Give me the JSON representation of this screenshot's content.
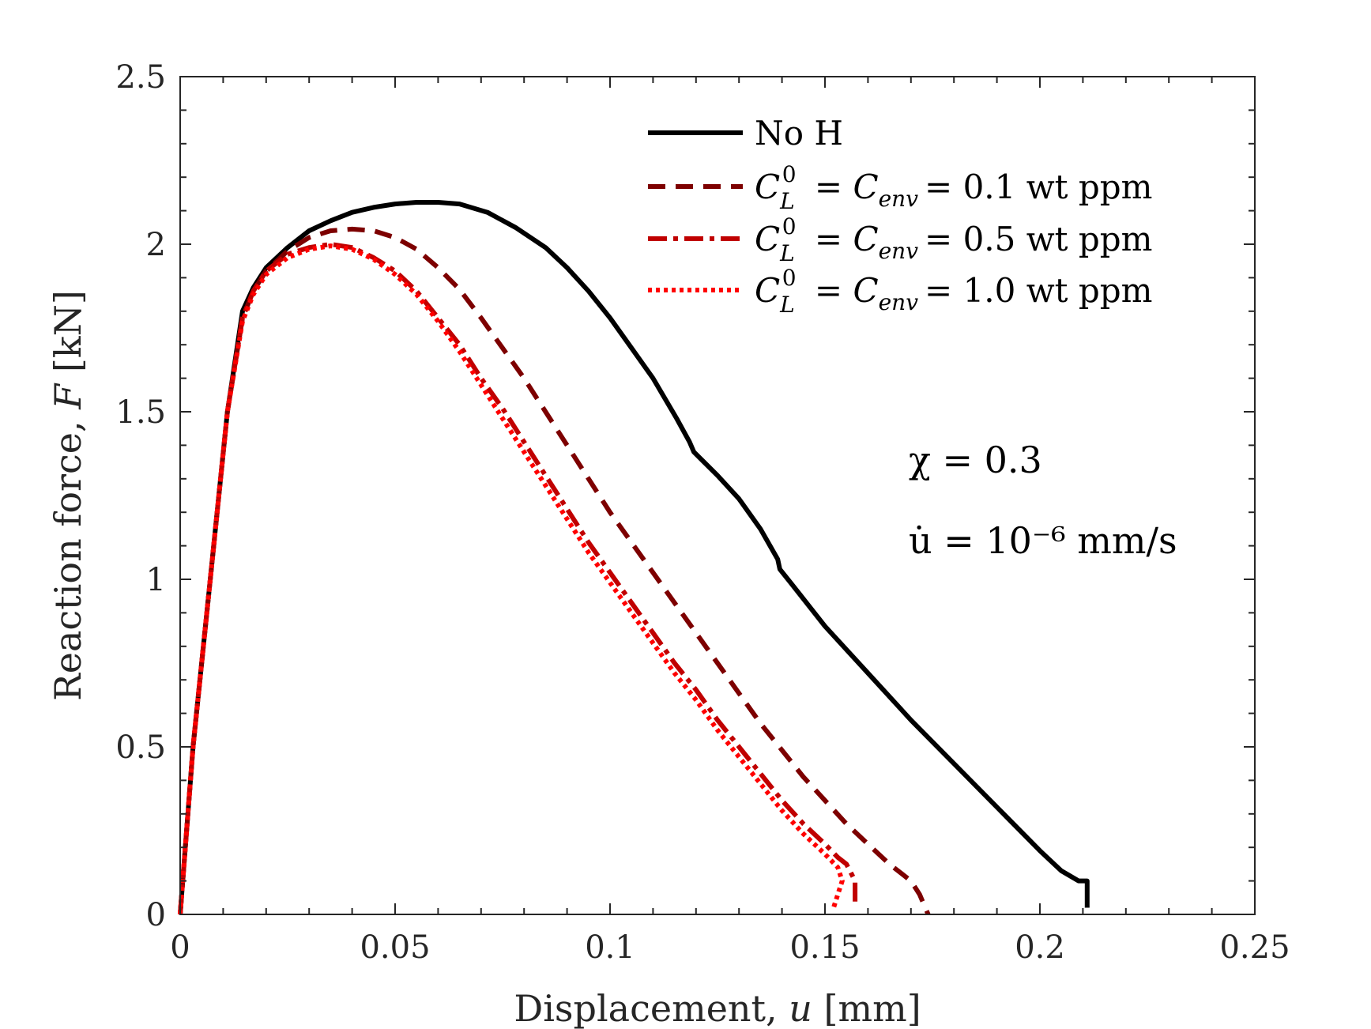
{
  "chart_data": {
    "type": "line",
    "title": "",
    "xlabel": "Displacement, u [mm]",
    "xlabel_text": "Displacement,",
    "xlabel_var": "u",
    "xlabel_unit": "[mm]",
    "ylabel": "Reaction force, F [kN]",
    "ylabel_text": "Reaction force,",
    "ylabel_var": "F",
    "ylabel_unit": "[kN]",
    "xlim": [
      0,
      0.25
    ],
    "ylim": [
      0,
      2.5
    ],
    "xticks": [
      0,
      0.05,
      0.1,
      0.15,
      0.2,
      0.25
    ],
    "xtick_labels": [
      "0",
      "0.05",
      "0.1",
      "0.15",
      "0.2",
      "0.25"
    ],
    "yticks": [
      0,
      0.5,
      1,
      1.5,
      2,
      2.5
    ],
    "ytick_labels": [
      "0",
      "0.5",
      "1",
      "1.5",
      "2",
      "2.5"
    ],
    "legend_position": "top-right",
    "annotations": {
      "chi": "χ = 0.3",
      "rate": "u̇ = 10⁻⁶ mm/s"
    },
    "series": [
      {
        "name": "No H",
        "legend_label": "No H",
        "color": "#000000",
        "style": "solid",
        "x": [
          0,
          0.003,
          0.007,
          0.011,
          0.0145,
          0.017,
          0.02,
          0.025,
          0.03,
          0.035,
          0.04,
          0.045,
          0.05,
          0.055,
          0.06,
          0.065,
          0.0715,
          0.078,
          0.085,
          0.09,
          0.095,
          0.1,
          0.105,
          0.11,
          0.1155,
          0.1185,
          0.1195,
          0.125,
          0.13,
          0.135,
          0.139,
          0.1395,
          0.142,
          0.15,
          0.16,
          0.17,
          0.18,
          0.19,
          0.2,
          0.205,
          0.209,
          0.211,
          0.211
        ],
        "y": [
          0,
          0.5,
          1.0,
          1.5,
          1.8,
          1.87,
          1.93,
          1.99,
          2.04,
          2.07,
          2.095,
          2.11,
          2.12,
          2.125,
          2.125,
          2.12,
          2.095,
          2.05,
          1.99,
          1.93,
          1.86,
          1.78,
          1.69,
          1.6,
          1.48,
          1.41,
          1.38,
          1.31,
          1.24,
          1.15,
          1.06,
          1.03,
          0.99,
          0.86,
          0.72,
          0.58,
          0.45,
          0.32,
          0.19,
          0.13,
          0.1,
          0.1,
          0.02
        ]
      },
      {
        "name": "C_L^0 = C_env = 0.1 wt ppm",
        "legend_label": "= 0.1 wt ppm",
        "color": "#7d0000",
        "style": "dashed",
        "x": [
          0,
          0.003,
          0.007,
          0.011,
          0.0145,
          0.017,
          0.02,
          0.025,
          0.03,
          0.035,
          0.04,
          0.045,
          0.05,
          0.055,
          0.06,
          0.065,
          0.07,
          0.075,
          0.08,
          0.085,
          0.09,
          0.095,
          0.1,
          0.105,
          0.11,
          0.115,
          0.12,
          0.125,
          0.13,
          0.135,
          0.14,
          0.145,
          0.15,
          0.155,
          0.16,
          0.165,
          0.17,
          0.172,
          0.174
        ],
        "y": [
          0,
          0.5,
          1.0,
          1.5,
          1.78,
          1.86,
          1.92,
          1.98,
          2.02,
          2.04,
          2.045,
          2.04,
          2.02,
          1.985,
          1.93,
          1.865,
          1.78,
          1.69,
          1.6,
          1.5,
          1.4,
          1.3,
          1.2,
          1.11,
          1.02,
          0.93,
          0.84,
          0.75,
          0.66,
          0.57,
          0.49,
          0.41,
          0.34,
          0.27,
          0.21,
          0.15,
          0.1,
          0.06,
          0.0
        ]
      },
      {
        "name": "C_L^0 = C_env = 0.5 wt ppm",
        "legend_label": "= 0.5 wt ppm",
        "color": "#c00000",
        "style": "dashdot",
        "x": [
          0,
          0.003,
          0.007,
          0.011,
          0.0145,
          0.017,
          0.02,
          0.025,
          0.03,
          0.035,
          0.04,
          0.045,
          0.05,
          0.055,
          0.06,
          0.065,
          0.07,
          0.075,
          0.08,
          0.085,
          0.09,
          0.095,
          0.1,
          0.105,
          0.11,
          0.115,
          0.12,
          0.125,
          0.13,
          0.135,
          0.14,
          0.145,
          0.15,
          0.153,
          0.155,
          0.157,
          0.157
        ],
        "y": [
          0,
          0.5,
          1.0,
          1.5,
          1.78,
          1.86,
          1.92,
          1.97,
          1.99,
          2.0,
          1.99,
          1.96,
          1.92,
          1.86,
          1.78,
          1.7,
          1.6,
          1.51,
          1.41,
          1.31,
          1.21,
          1.11,
          1.02,
          0.93,
          0.84,
          0.75,
          0.67,
          0.58,
          0.5,
          0.42,
          0.34,
          0.27,
          0.21,
          0.17,
          0.15,
          0.1,
          0.03
        ]
      },
      {
        "name": "C_L^0 = C_env = 1.0 wt ppm",
        "legend_label": "= 1.0 wt ppm",
        "color": "#ff0000",
        "style": "dotted",
        "x": [
          0,
          0.003,
          0.007,
          0.011,
          0.0145,
          0.017,
          0.02,
          0.025,
          0.03,
          0.035,
          0.04,
          0.045,
          0.05,
          0.055,
          0.06,
          0.065,
          0.07,
          0.075,
          0.08,
          0.085,
          0.09,
          0.095,
          0.1,
          0.105,
          0.11,
          0.115,
          0.12,
          0.125,
          0.13,
          0.135,
          0.14,
          0.145,
          0.15,
          0.153,
          0.154,
          0.153,
          0.152
        ],
        "y": [
          0,
          0.5,
          1.0,
          1.5,
          1.77,
          1.85,
          1.91,
          1.96,
          1.985,
          1.995,
          1.985,
          1.955,
          1.91,
          1.85,
          1.77,
          1.68,
          1.58,
          1.48,
          1.38,
          1.28,
          1.18,
          1.08,
          0.99,
          0.9,
          0.81,
          0.72,
          0.64,
          0.55,
          0.47,
          0.39,
          0.31,
          0.24,
          0.18,
          0.14,
          0.1,
          0.06,
          0.02
        ]
      }
    ]
  }
}
